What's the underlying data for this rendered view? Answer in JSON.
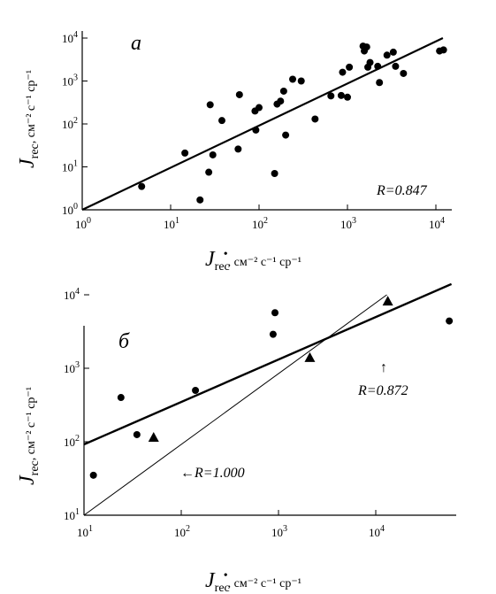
{
  "chart_data": [
    {
      "type": "scatter",
      "panel_label": "a",
      "xscale": "log",
      "yscale": "log",
      "xlim": [
        1,
        12000
      ],
      "ylim": [
        1,
        12000
      ],
      "xticks": [
        {
          "value": 1,
          "base": "10",
          "exp": "0"
        },
        {
          "value": 10,
          "base": "10",
          "exp": "1"
        },
        {
          "value": 100,
          "base": "10",
          "exp": "2"
        },
        {
          "value": 1000,
          "base": "10",
          "exp": "3"
        },
        {
          "value": 10000,
          "base": "10",
          "exp": "4"
        }
      ],
      "yticks": [
        {
          "value": 1,
          "base": "10",
          "exp": "0"
        },
        {
          "value": 10,
          "base": "10",
          "exp": "1"
        },
        {
          "value": 100,
          "base": "10",
          "exp": "2"
        },
        {
          "value": 1000,
          "base": "10",
          "exp": "3"
        },
        {
          "value": 10000,
          "base": "10",
          "exp": "4"
        }
      ],
      "xlabel": {
        "main": "J",
        "sub": "rec",
        "units": ", см⁻² с⁻¹ ср⁻¹"
      },
      "ylabel": {
        "main": "J",
        "sub": "rec",
        "units": ", см⁻² с⁻¹ ср⁻¹"
      },
      "annotation": "R=0.847",
      "fit_line": [
        [
          1,
          1
        ],
        [
          12000,
          10000
        ]
      ],
      "series": [
        {
          "marker": "circle",
          "points": [
            [
              4.7,
              3.5
            ],
            [
              14.5,
              21
            ],
            [
              21.5,
              1.7
            ],
            [
              27,
              7.5
            ],
            [
              28,
              280
            ],
            [
              30,
              19
            ],
            [
              38,
              120
            ],
            [
              58,
              26
            ],
            [
              60,
              480
            ],
            [
              90,
              200
            ],
            [
              92,
              72
            ],
            [
              100,
              240
            ],
            [
              150,
              7
            ],
            [
              160,
              290
            ],
            [
              175,
              340
            ],
            [
              190,
              580
            ],
            [
              200,
              55
            ],
            [
              240,
              1100
            ],
            [
              300,
              1000
            ],
            [
              430,
              130
            ],
            [
              650,
              450
            ],
            [
              850,
              460
            ],
            [
              880,
              1600
            ],
            [
              1000,
              420
            ],
            [
              1050,
              2100
            ],
            [
              1500,
              6500
            ],
            [
              1550,
              5000
            ],
            [
              1650,
              6200
            ],
            [
              1700,
              2100
            ],
            [
              1800,
              2700
            ],
            [
              2200,
              2200
            ],
            [
              2300,
              920
            ],
            [
              2800,
              4000
            ],
            [
              3300,
              4700
            ],
            [
              3500,
              2200
            ],
            [
              4300,
              1500
            ],
            [
              11000,
              5000
            ],
            [
              12200,
              5300
            ]
          ]
        }
      ]
    },
    {
      "type": "scatter",
      "panel_label": "б",
      "xscale": "log",
      "yscale": "log",
      "xlim": [
        10,
        60000
      ],
      "ylim": [
        10,
        15000
      ],
      "xticks": [
        {
          "value": 10,
          "base": "10",
          "exp": "1"
        },
        {
          "value": 100,
          "base": "10",
          "exp": "2"
        },
        {
          "value": 1000,
          "base": "10",
          "exp": "3"
        },
        {
          "value": 10000,
          "base": "10",
          "exp": "4"
        }
      ],
      "yticks": [
        {
          "value": 10,
          "base": "10",
          "exp": "1"
        },
        {
          "value": 100,
          "base": "10",
          "exp": "2"
        },
        {
          "value": 1000,
          "base": "10",
          "exp": "3"
        },
        {
          "value": 10000,
          "base": "10",
          "exp": "4"
        }
      ],
      "xlabel": {
        "main": "J",
        "sub": "rec",
        "units": ", см⁻² с⁻¹ ср⁻¹"
      },
      "ylabel": {
        "main": "J",
        "sub": "rec",
        "units": ", см⁻² с⁻¹ ср⁻¹"
      },
      "annotations": [
        {
          "text": "R=0.872",
          "arrow": "↑"
        },
        {
          "text": "R=1.000",
          "arrow": "←"
        }
      ],
      "fit_line_thick": [
        [
          10,
          92
        ],
        [
          60000,
          14000
        ]
      ],
      "fit_line_thin": [
        [
          10,
          10
        ],
        [
          13000,
          10000
        ]
      ],
      "series": [
        {
          "marker": "circle",
          "points": [
            [
              12.5,
              35
            ],
            [
              24,
              400
            ],
            [
              35,
              125
            ],
            [
              140,
              500
            ],
            [
              880,
              2900
            ],
            [
              920,
              5700
            ],
            [
              57000,
              4400
            ]
          ]
        },
        {
          "marker": "triangle",
          "points": [
            [
              52,
              115
            ],
            [
              2100,
              1400
            ],
            [
              13300,
              8200
            ]
          ]
        }
      ]
    }
  ]
}
